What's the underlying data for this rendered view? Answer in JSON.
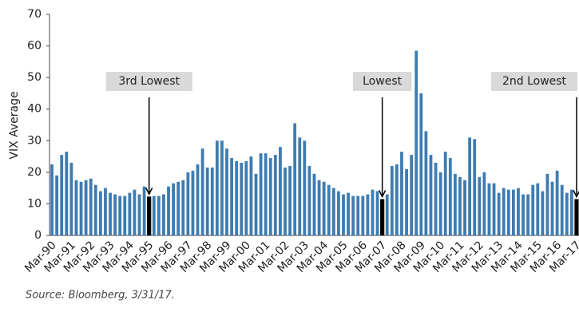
{
  "chart_data": {
    "type": "bar",
    "y_label": "VIX Average",
    "source": "Source: Bloomberg, 3/31/17.",
    "color": "#3e7cb1",
    "highlight_color": "#000000",
    "ylim": [
      0,
      70
    ],
    "yticks": [
      0,
      10,
      20,
      30,
      40,
      50,
      60,
      70
    ],
    "annotations": [
      {
        "text": "3rd Lowest",
        "category": "Mar-95"
      },
      {
        "text": "Lowest",
        "category": "Mar-07"
      },
      {
        "text": "2nd Lowest",
        "category": "Mar-17"
      }
    ],
    "categories": [
      "Mar-90",
      null,
      null,
      null,
      "Mar-91",
      null,
      null,
      null,
      "Mar-92",
      null,
      null,
      null,
      "Mar-93",
      null,
      null,
      null,
      "Mar-94",
      null,
      null,
      null,
      "Mar-95",
      null,
      null,
      null,
      "Mar-96",
      null,
      null,
      null,
      "Mar-97",
      null,
      null,
      null,
      "Mar-98",
      null,
      null,
      null,
      "Mar-99",
      null,
      null,
      null,
      "Mar-00",
      null,
      null,
      null,
      "Mar-01",
      null,
      null,
      null,
      "Mar-02",
      null,
      null,
      null,
      "Mar-03",
      null,
      null,
      null,
      "Mar-04",
      null,
      null,
      null,
      "Mar-05",
      null,
      null,
      null,
      "Mar-06",
      null,
      null,
      null,
      "Mar-07",
      null,
      null,
      null,
      "Mar-08",
      null,
      null,
      null,
      "Mar-09",
      null,
      null,
      null,
      "Mar-10",
      null,
      null,
      null,
      "Mar-11",
      null,
      null,
      null,
      "Mar-12",
      null,
      null,
      null,
      "Mar-13",
      null,
      null,
      null,
      "Mar-14",
      null,
      null,
      null,
      "Mar-15",
      null,
      null,
      null,
      "Mar-16",
      null,
      null,
      null,
      "Mar-17"
    ],
    "values": [
      22.5,
      19,
      25.5,
      26.5,
      23,
      17.5,
      17,
      17.5,
      18,
      16,
      14,
      15,
      13.5,
      13,
      12.5,
      12.5,
      13.5,
      14.5,
      13,
      15.5,
      12.3,
      12.5,
      12.5,
      13,
      15.5,
      16.5,
      17,
      17.5,
      20,
      20.5,
      22.5,
      27.5,
      21.5,
      21.5,
      30,
      30,
      27.5,
      24.5,
      23.5,
      23,
      23.5,
      25,
      19.5,
      26,
      26,
      24.5,
      25.5,
      28,
      21.5,
      22,
      35.5,
      31,
      30,
      22,
      19.5,
      17.5,
      17,
      16,
      15,
      14,
      13,
      13.5,
      12.5,
      12.5,
      12.5,
      13,
      14.5,
      14,
      11.5,
      13,
      22,
      22.5,
      26.5,
      21,
      25.5,
      58.5,
      45,
      33,
      25.5,
      23,
      20,
      26.5,
      24.5,
      19.5,
      18.5,
      17.5,
      31,
      30.5,
      18.5,
      20,
      16.5,
      16.5,
      13.5,
      15,
      14.5,
      14.5,
      15,
      13,
      13,
      16,
      16.5,
      14,
      19.5,
      17,
      20.5,
      16,
      13.5,
      14.5,
      11.5
    ]
  }
}
